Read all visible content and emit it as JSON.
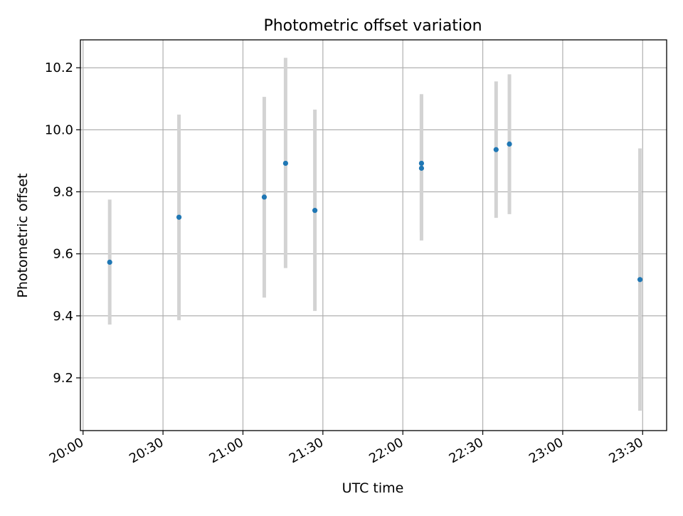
{
  "chart_data": {
    "type": "scatter",
    "title": "Photometric offset variation",
    "xlabel": "UTC time",
    "ylabel": "Photometric offset",
    "x_ticks": [
      "20:00",
      "20:30",
      "21:00",
      "21:30",
      "22:00",
      "22:30",
      "23:00",
      "23:30"
    ],
    "y_ticks": [
      "9.2",
      "9.4",
      "9.6",
      "9.8",
      "10.0",
      "10.2"
    ],
    "xlim": [
      "19:59",
      "23:39"
    ],
    "ylim": [
      9.03,
      10.29
    ],
    "grid": true,
    "colors": {
      "point": "#1f77b4",
      "errorbar": "#d3d3d3"
    },
    "points": [
      {
        "x": "20:10",
        "y": 9.573,
        "yerr_low": 9.372,
        "yerr_high": 9.775
      },
      {
        "x": "20:36",
        "y": 9.718,
        "yerr_low": 9.386,
        "yerr_high": 10.049
      },
      {
        "x": "21:08",
        "y": 9.783,
        "yerr_low": 9.459,
        "yerr_high": 10.106
      },
      {
        "x": "21:16",
        "y": 9.892,
        "yerr_low": 9.554,
        "yerr_high": 10.232
      },
      {
        "x": "21:27",
        "y": 9.74,
        "yerr_low": 9.416,
        "yerr_high": 10.065
      },
      {
        "x": "22:07",
        "y": 9.892,
        "yerr_low": 9.67,
        "yerr_high": 10.115
      },
      {
        "x": "22:07",
        "y": 9.876,
        "yerr_low": 9.643,
        "yerr_high": 10.11
      },
      {
        "x": "22:35",
        "y": 9.936,
        "yerr_low": 9.716,
        "yerr_high": 10.156
      },
      {
        "x": "22:40",
        "y": 9.954,
        "yerr_low": 9.728,
        "yerr_high": 10.179
      },
      {
        "x": "23:29",
        "y": 9.517,
        "yerr_low": 9.094,
        "yerr_high": 9.94
      }
    ]
  }
}
